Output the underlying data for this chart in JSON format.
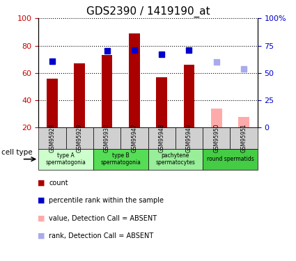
{
  "title": "GDS2390 / 1419190_at",
  "samples": [
    "GSM95928",
    "GSM95929",
    "GSM95930",
    "GSM95947",
    "GSM95948",
    "GSM95949",
    "GSM95950",
    "GSM95951"
  ],
  "bar_values": [
    56,
    67,
    73,
    89,
    57,
    66,
    null,
    null
  ],
  "bar_absent_values": [
    null,
    null,
    null,
    null,
    null,
    null,
    34,
    28
  ],
  "rank_values": [
    61,
    null,
    70,
    71,
    67,
    71,
    null,
    null
  ],
  "rank_absent_values": [
    null,
    null,
    null,
    null,
    null,
    null,
    60,
    54
  ],
  "bar_color_present": "#aa0000",
  "bar_color_absent": "#ffaaaa",
  "rank_color_present": "#0000cc",
  "rank_color_absent": "#aaaaee",
  "bar_bottom": 20,
  "ylim_left": [
    20,
    100
  ],
  "ylim_right": [
    0,
    100
  ],
  "yticks_left": [
    20,
    40,
    60,
    80,
    100
  ],
  "yticks_right": [
    0,
    25,
    50,
    75,
    100
  ],
  "ytick_labels_right": [
    "0",
    "25",
    "50",
    "75",
    "100%"
  ],
  "cell_groups": [
    {
      "label": "type A\nspermatogonia",
      "samples": [
        0,
        1
      ],
      "color": "#ccffcc"
    },
    {
      "label": "type B\nspermatogonia",
      "samples": [
        2,
        3
      ],
      "color": "#55dd55"
    },
    {
      "label": "pachytene\nspermatocytes",
      "samples": [
        4,
        5
      ],
      "color": "#99ee99"
    },
    {
      "label": "round spermatids",
      "samples": [
        6,
        7
      ],
      "color": "#44cc44"
    }
  ],
  "legend_items": [
    {
      "label": "count",
      "color": "#aa0000"
    },
    {
      "label": "percentile rank within the sample",
      "color": "#0000cc"
    },
    {
      "label": "value, Detection Call = ABSENT",
      "color": "#ffaaaa"
    },
    {
      "label": "rank, Detection Call = ABSENT",
      "color": "#aaaaee"
    }
  ],
  "cell_type_label": "cell type",
  "bar_width": 0.4,
  "rank_marker_size": 6,
  "grid_color": "#000000",
  "grid_linestyle": ":",
  "grid_linewidth": 0.8,
  "tick_color_left": "#cc0000",
  "tick_color_right": "#0000cc",
  "sample_box_color": "#d0d0d0"
}
